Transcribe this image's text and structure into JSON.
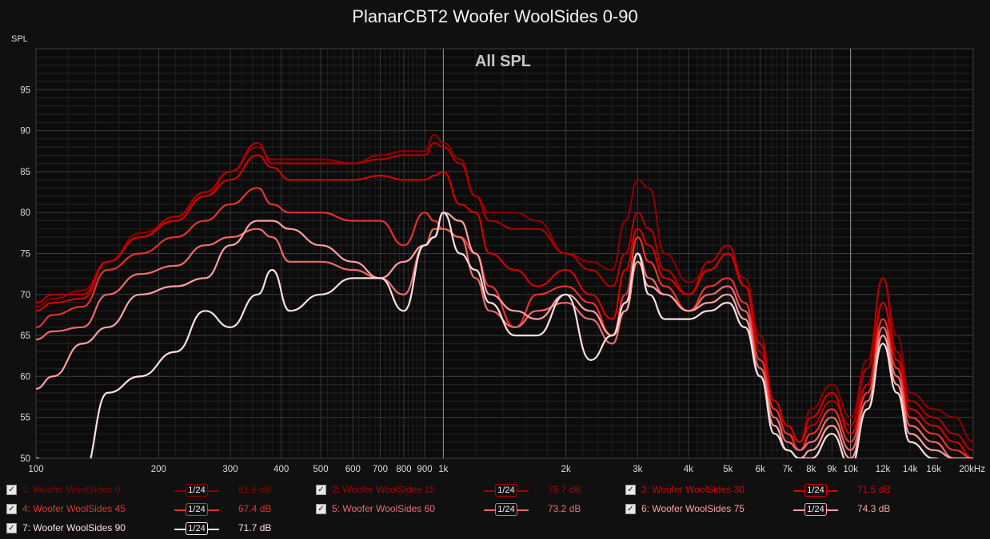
{
  "chart_data": {
    "type": "line",
    "title": "PlanarCBT2 Woofer WoolSides 0-90",
    "overlay_label": "All SPL",
    "y_unit_label": "SPL",
    "x_unit_label": "kHz",
    "x_scale": "log",
    "xlim": [
      100,
      20000
    ],
    "ylim": [
      50,
      100
    ],
    "grid": true,
    "x_tick_labels": [
      {
        "f": 100,
        "label": "100"
      },
      {
        "f": 200,
        "label": "200"
      },
      {
        "f": 300,
        "label": "300"
      },
      {
        "f": 400,
        "label": "400"
      },
      {
        "f": 500,
        "label": "500"
      },
      {
        "f": 600,
        "label": "600"
      },
      {
        "f": 700,
        "label": "700"
      },
      {
        "f": 800,
        "label": "800"
      },
      {
        "f": 900,
        "label": "900"
      },
      {
        "f": 1000,
        "label": "1k"
      },
      {
        "f": 2000,
        "label": "2k"
      },
      {
        "f": 3000,
        "label": "3k"
      },
      {
        "f": 4000,
        "label": "4k"
      },
      {
        "f": 5000,
        "label": "5k"
      },
      {
        "f": 6000,
        "label": "6k"
      },
      {
        "f": 7000,
        "label": "7k"
      },
      {
        "f": 8000,
        "label": "8k"
      },
      {
        "f": 9000,
        "label": "9k"
      },
      {
        "f": 10000,
        "label": "10k"
      },
      {
        "f": 12000,
        "label": "12k"
      },
      {
        "f": 14000,
        "label": "14k"
      },
      {
        "f": 16000,
        "label": "16k"
      },
      {
        "f": 20000,
        "label": "20kHz"
      }
    ],
    "y_tick_labels": [
      "50",
      "55",
      "60",
      "65",
      "70",
      "75",
      "80",
      "85",
      "90",
      "95"
    ],
    "series": [
      {
        "name": "1: Woofer WoolSides 0",
        "color": "#8b0000",
        "x": [
          100,
          110,
          130,
          150,
          180,
          220,
          260,
          300,
          350,
          380,
          420,
          500,
          600,
          700,
          800,
          900,
          950,
          1000,
          1100,
          1200,
          1300,
          1500,
          1700,
          2000,
          2300,
          2600,
          2800,
          3000,
          3200,
          3500,
          4000,
          4500,
          5000,
          5500,
          6000,
          6500,
          7000,
          7500,
          8000,
          9000,
          10000,
          11000,
          12000,
          13000,
          14000,
          16000,
          18000,
          20000
        ],
        "y": [
          68.5,
          69.5,
          70.5,
          74,
          77.5,
          79,
          82,
          85,
          88,
          86.5,
          86.5,
          86.5,
          86,
          87,
          87.5,
          87.5,
          89.5,
          88.5,
          86.5,
          82,
          80,
          80,
          79,
          75,
          74,
          73,
          79,
          84,
          83,
          75,
          71.5,
          73,
          75,
          72,
          65,
          57,
          54,
          52,
          56,
          59,
          55,
          62,
          72,
          65,
          58,
          56,
          55,
          52
        ]
      },
      {
        "name": "2: Woofer WoolSides 15",
        "color": "#b00000",
        "x": [
          100,
          110,
          130,
          150,
          180,
          220,
          260,
          300,
          350,
          380,
          420,
          500,
          600,
          700,
          800,
          900,
          950,
          1000,
          1100,
          1200,
          1300,
          1500,
          1700,
          2000,
          2300,
          2600,
          2800,
          3000,
          3200,
          3500,
          4000,
          4500,
          5000,
          5500,
          6000,
          6500,
          7000,
          7500,
          8000,
          9000,
          10000,
          11000,
          12000,
          13000,
          14000,
          16000,
          18000,
          20000
        ],
        "y": [
          69,
          70,
          70,
          74,
          77,
          79.5,
          82.5,
          85,
          88.5,
          86,
          86,
          86,
          86,
          86.5,
          87,
          87,
          88.5,
          88,
          86,
          82,
          79,
          78,
          78,
          75,
          73,
          71,
          75,
          80,
          78,
          73,
          70,
          74,
          76,
          71,
          63,
          56,
          53,
          52,
          54,
          57,
          54,
          61,
          72,
          63,
          57,
          55,
          53,
          51
        ]
      },
      {
        "name": "3: Woofer WoolSides 30",
        "color": "#d40000",
        "x": [
          100,
          110,
          130,
          150,
          180,
          220,
          260,
          300,
          350,
          380,
          420,
          500,
          600,
          700,
          800,
          900,
          950,
          1000,
          1100,
          1200,
          1300,
          1500,
          1700,
          2000,
          2300,
          2600,
          2800,
          3000,
          3200,
          3500,
          4000,
          4500,
          5000,
          5500,
          6000,
          6500,
          7000,
          7500,
          8000,
          9000,
          10000,
          11000,
          12000,
          13000,
          14000,
          16000,
          18000,
          20000
        ],
        "y": [
          68,
          69,
          69.5,
          74,
          77,
          79,
          82,
          84,
          87,
          85.5,
          84,
          84,
          84,
          84.5,
          84,
          84,
          84.5,
          85,
          81,
          80,
          75,
          73,
          71,
          73,
          70,
          67,
          73,
          78,
          76,
          72,
          70,
          73,
          75,
          71,
          64,
          57,
          54,
          52,
          55,
          58,
          53,
          59,
          69,
          62,
          56,
          54,
          52,
          50
        ]
      },
      {
        "name": "4: Woofer WoolSides 45",
        "color": "#e83030",
        "x": [
          100,
          110,
          130,
          150,
          180,
          220,
          260,
          300,
          350,
          380,
          420,
          500,
          600,
          700,
          800,
          900,
          950,
          1000,
          1100,
          1200,
          1300,
          1500,
          1700,
          2000,
          2300,
          2600,
          2800,
          3000,
          3200,
          3500,
          4000,
          4500,
          5000,
          5500,
          6000,
          6500,
          7000,
          7500,
          8000,
          9000,
          10000,
          11000,
          12000,
          13000,
          14000,
          16000,
          18000,
          20000
        ],
        "y": [
          66,
          67.5,
          68.5,
          73,
          75,
          77,
          79,
          81,
          83,
          81,
          80,
          80,
          79,
          79,
          76,
          80,
          79,
          78,
          77,
          75,
          71,
          66,
          70,
          71,
          69,
          65,
          70,
          77,
          74,
          71,
          68,
          71,
          72,
          69,
          62,
          56,
          53,
          51,
          53,
          56,
          52,
          58,
          67,
          61,
          55,
          53,
          51,
          50
        ]
      },
      {
        "name": "5: Woofer WoolSides 60",
        "color": "#f06a6a",
        "x": [
          100,
          110,
          130,
          150,
          180,
          220,
          260,
          300,
          350,
          380,
          420,
          500,
          600,
          700,
          800,
          900,
          950,
          1000,
          1100,
          1200,
          1300,
          1500,
          1700,
          2000,
          2300,
          2600,
          2800,
          3000,
          3200,
          3500,
          4000,
          4500,
          5000,
          5500,
          6000,
          6500,
          7000,
          7500,
          8000,
          9000,
          10000,
          11000,
          12000,
          13000,
          14000,
          16000,
          18000,
          20000
        ],
        "y": [
          64.5,
          65.5,
          66,
          70,
          72.5,
          73.5,
          76,
          77,
          78,
          77,
          74,
          74,
          73,
          72,
          70,
          76,
          78,
          78,
          77,
          72,
          68,
          66,
          68,
          69,
          67,
          64,
          68,
          75,
          72,
          70,
          68,
          70,
          71,
          68,
          61,
          55,
          52,
          51,
          52,
          55,
          51,
          57,
          66,
          60,
          54,
          52,
          50,
          50
        ]
      },
      {
        "name": "6: Woofer WoolSides 75",
        "color": "#ffa0a0",
        "x": [
          100,
          110,
          130,
          150,
          180,
          220,
          260,
          300,
          350,
          380,
          420,
          500,
          600,
          700,
          800,
          900,
          950,
          1000,
          1100,
          1200,
          1300,
          1500,
          1700,
          2000,
          2300,
          2600,
          2800,
          3000,
          3200,
          3500,
          4000,
          4500,
          5000,
          5500,
          6000,
          6500,
          7000,
          7500,
          8000,
          9000,
          10000,
          11000,
          12000,
          13000,
          14000,
          16000,
          18000,
          20000
        ],
        "y": [
          58.5,
          60,
          64,
          66,
          70,
          71,
          72,
          76,
          79,
          79,
          78,
          76,
          74,
          72,
          74,
          76,
          77,
          80,
          79,
          75,
          70,
          68,
          67,
          70,
          68,
          65,
          68,
          74,
          71,
          70,
          68,
          69,
          70,
          67,
          60,
          54,
          51,
          50,
          51,
          54,
          50,
          56,
          65,
          59,
          53,
          51,
          50,
          50
        ]
      },
      {
        "name": "7: Woofer WoolSides 90",
        "color": "#ffe0e0",
        "x": [
          100,
          110,
          130,
          150,
          180,
          220,
          260,
          300,
          350,
          380,
          420,
          500,
          600,
          700,
          800,
          900,
          950,
          1000,
          1100,
          1200,
          1300,
          1500,
          1700,
          2000,
          2300,
          2600,
          2800,
          3000,
          3200,
          3500,
          4000,
          4500,
          5000,
          5500,
          6000,
          6500,
          7000,
          7500,
          8000,
          9000,
          10000,
          11000,
          12000,
          13000,
          14000,
          16000,
          18000,
          20000
        ],
        "y": [
          50,
          49,
          48,
          58,
          60,
          63,
          68,
          66,
          70,
          73,
          68,
          70,
          72,
          72,
          68,
          76,
          77,
          80,
          75,
          73,
          69,
          65,
          65,
          70,
          62,
          65,
          69,
          75,
          70,
          67,
          67,
          68,
          69,
          66,
          60,
          53,
          51,
          50,
          50,
          53,
          49,
          56,
          64,
          58,
          52,
          50,
          49,
          49
        ]
      }
    ]
  },
  "legend": [
    {
      "check": "✓",
      "label": "1: Woofer WoolSides 0",
      "smoothing": "1/24",
      "value": "81.6 dB",
      "color": "#8b0000"
    },
    {
      "check": "✓",
      "label": "2: Woofer WoolSides 15",
      "smoothing": "1/24",
      "value": "79.7 dB",
      "color": "#b00000"
    },
    {
      "check": "✓",
      "label": "3: Woofer WoolSides 30",
      "smoothing": "1/24",
      "value": "71.5 dB",
      "color": "#d40000"
    },
    {
      "check": "✓",
      "label": "4: Woofer WoolSides 45",
      "smoothing": "1/24",
      "value": "67.4 dB",
      "color": "#e83030"
    },
    {
      "check": "✓",
      "label": "5: Woofer WoolSides 60",
      "smoothing": "1/24",
      "value": "73.2 dB",
      "color": "#f06a6a"
    },
    {
      "check": "✓",
      "label": "6: Woofer WoolSides 75",
      "smoothing": "1/24",
      "value": "74.3 dB",
      "color": "#ffa0a0"
    },
    {
      "check": "✓",
      "label": "7: Woofer WoolSides 90",
      "smoothing": "1/24",
      "value": "71.7 dB",
      "color": "#ffe0e0"
    }
  ]
}
